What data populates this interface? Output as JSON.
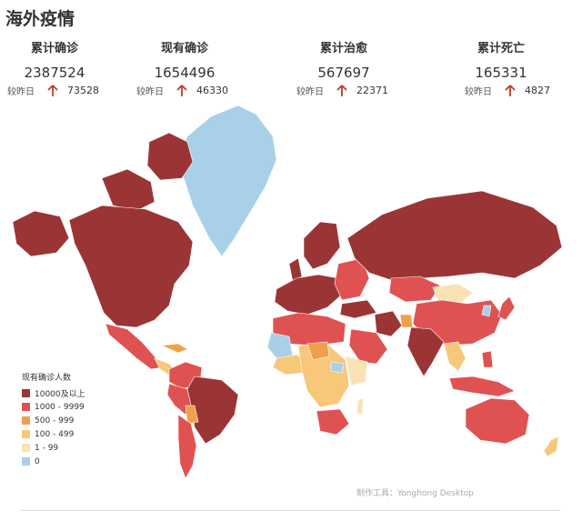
{
  "title": "海外疫情",
  "stats": [
    {
      "label": "累计确诊",
      "value": "2387524",
      "compare_label": "较昨日",
      "delta": "73528"
    },
    {
      "label": "现有确诊",
      "value": "1654496",
      "compare_label": "较昨日",
      "delta": "46330"
    },
    {
      "label": "累计治愈",
      "value": "567697",
      "compare_label": "较昨日",
      "delta": "22371"
    },
    {
      "label": "累计死亡",
      "value": "165331",
      "compare_label": "较昨日",
      "delta": "4827"
    }
  ],
  "arrow_icon": "up-arrow-icon",
  "legend": {
    "title": "现有确诊人数",
    "items": [
      {
        "label": "10000及以上",
        "color": "#9b3535"
      },
      {
        "label": "1000 - 9999",
        "color": "#e05252"
      },
      {
        "label": "500 - 999",
        "color": "#f0a04b"
      },
      {
        "label": "100 - 499",
        "color": "#f7c87a"
      },
      {
        "label": "1 - 99",
        "color": "#fbe2b4"
      },
      {
        "label": "0",
        "color": "#a8d0e8"
      }
    ]
  },
  "credit": "制作工具：Yonghong Desktop",
  "colors": {
    "arrow": "#c0392b"
  }
}
